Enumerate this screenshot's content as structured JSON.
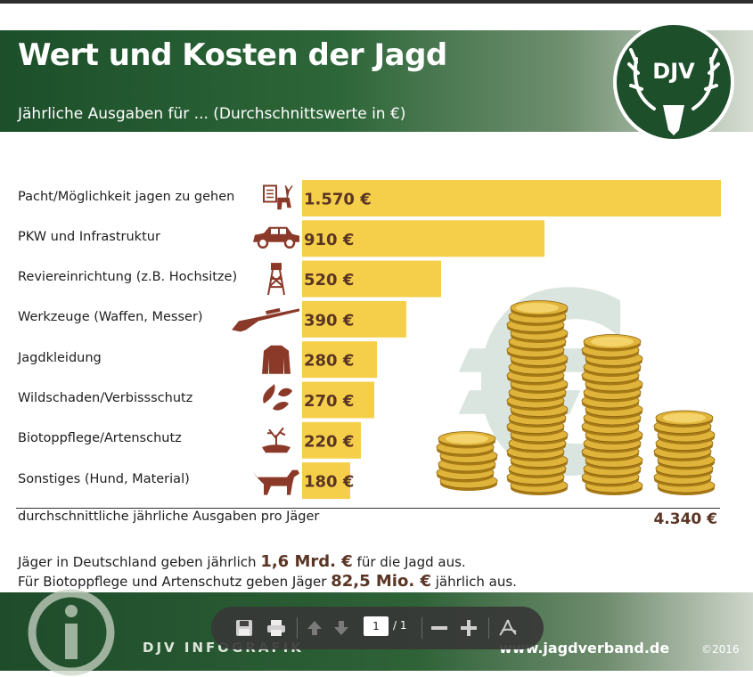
{
  "header": {
    "title": "Wert und Kosten der Jagd",
    "subtitle": "Jährliche Ausgaben für ... (Durchschnittswerte in €)",
    "logo_text": "DJV"
  },
  "chart_data": {
    "type": "bar",
    "orientation": "horizontal",
    "categories": [
      "Pacht/Möglichkeit jagen zu gehen",
      "PKW und Infrastruktur",
      "Reviereinrichtung (z.B. Hochsitze)",
      "Werkzeuge (Waffen, Messer)",
      "Jagdkleidung",
      "Wildschaden/Verbissschutz",
      "Biotoppflege/Artenschutz",
      "Sonstiges (Hund, Material)"
    ],
    "values": [
      1570,
      910,
      520,
      390,
      280,
      270,
      220,
      180
    ],
    "value_labels": [
      "1.570 €",
      "910 €",
      "520 €",
      "390 €",
      "280 €",
      "270 €",
      "220 €",
      "180 €"
    ],
    "bar_color": "#f5cf4a",
    "icons": [
      "document-deer-icon",
      "car-icon",
      "hunting-stand-icon",
      "rifle-icon",
      "jacket-icon",
      "leaves-icon",
      "tree-hand-icon",
      "dog-icon"
    ],
    "total_label": "durchschnittliche jährliche Ausgaben pro Jäger",
    "total_value": "4.340 €"
  },
  "facts": {
    "line1_pre": "Jäger in Deutschland geben jährlich ",
    "line1_hl": "1,6 Mrd. €",
    "line1_post": " für die Jagd aus.",
    "line2_pre": "Für Biotoppflege und Artenschutz geben Jäger ",
    "line2_hl": "82,5 Mio. €",
    "line2_post": " jährlich aus."
  },
  "footer": {
    "brand": "DJV INFOGRAFIK",
    "url": "www.jagdverband.de",
    "copyright": "©2016"
  },
  "toolbar": {
    "current_page": "1",
    "total_pages": "/ 1",
    "icons": [
      "save-icon",
      "print-icon",
      "arrow-up-icon",
      "arrow-down-icon",
      "zoom-out-icon",
      "zoom-in-icon",
      "acrobat-icon"
    ]
  },
  "colors": {
    "header_green": "#1c4f2a",
    "value_brown": "#5a3524",
    "icon_brown": "#8b3a2a",
    "coin_gold": "#e0b43a"
  }
}
